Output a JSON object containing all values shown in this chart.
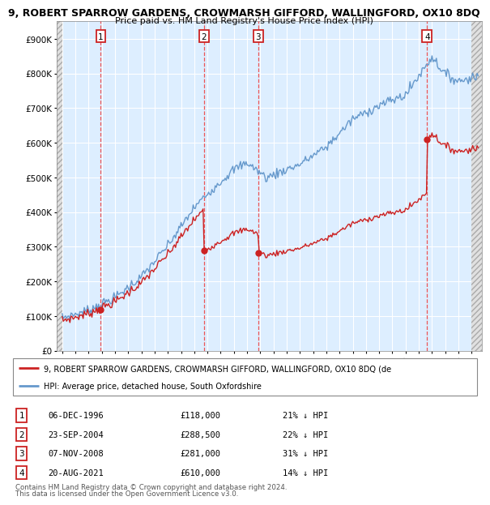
{
  "title1": "9, ROBERT SPARROW GARDENS, CROWMARSH GIFFORD, WALLINGFORD, OX10 8DQ",
  "title2": "Price paid vs. HM Land Registry's House Price Index (HPI)",
  "background_color": "#ffffff",
  "plot_bg_color": "#ddeeff",
  "grid_color": "#ffffff",
  "hpi_color": "#6699cc",
  "price_color": "#cc2222",
  "vline_color": "#ee4444",
  "ylim": [
    0,
    950000
  ],
  "yticks": [
    0,
    100000,
    200000,
    300000,
    400000,
    500000,
    600000,
    700000,
    800000,
    900000
  ],
  "ytick_labels": [
    "£0",
    "£100K",
    "£200K",
    "£300K",
    "£400K",
    "£500K",
    "£600K",
    "£700K",
    "£800K",
    "£900K"
  ],
  "xlim_start": 1993.6,
  "xlim_end": 2025.8,
  "hatch_left_end": 1994.0,
  "hatch_right_start": 2025.0,
  "xticks": [
    1994,
    1995,
    1996,
    1997,
    1998,
    1999,
    2000,
    2001,
    2002,
    2003,
    2004,
    2005,
    2006,
    2007,
    2008,
    2009,
    2010,
    2011,
    2012,
    2013,
    2014,
    2015,
    2016,
    2017,
    2018,
    2019,
    2020,
    2021,
    2022,
    2023,
    2024,
    2025
  ],
  "sales": [
    {
      "label": 1,
      "year": 1996.92,
      "price": 118000,
      "date": "06-DEC-1996",
      "pct": "21%",
      "dir": "↓"
    },
    {
      "label": 2,
      "year": 2004.73,
      "price": 288500,
      "date": "23-SEP-2004",
      "pct": "22%",
      "dir": "↓"
    },
    {
      "label": 3,
      "year": 2008.85,
      "price": 281000,
      "date": "07-NOV-2008",
      "pct": "31%",
      "dir": "↓"
    },
    {
      "label": 4,
      "year": 2021.63,
      "price": 610000,
      "date": "20-AUG-2021",
      "pct": "14%",
      "dir": "↓"
    }
  ],
  "legend_line1": "9, ROBERT SPARROW GARDENS, CROWMARSH GIFFORD, WALLINGFORD, OX10 8DQ (de",
  "legend_line2": "HPI: Average price, detached house, South Oxfordshire",
  "footer1": "Contains HM Land Registry data © Crown copyright and database right 2024.",
  "footer2": "This data is licensed under the Open Government Licence v3.0."
}
